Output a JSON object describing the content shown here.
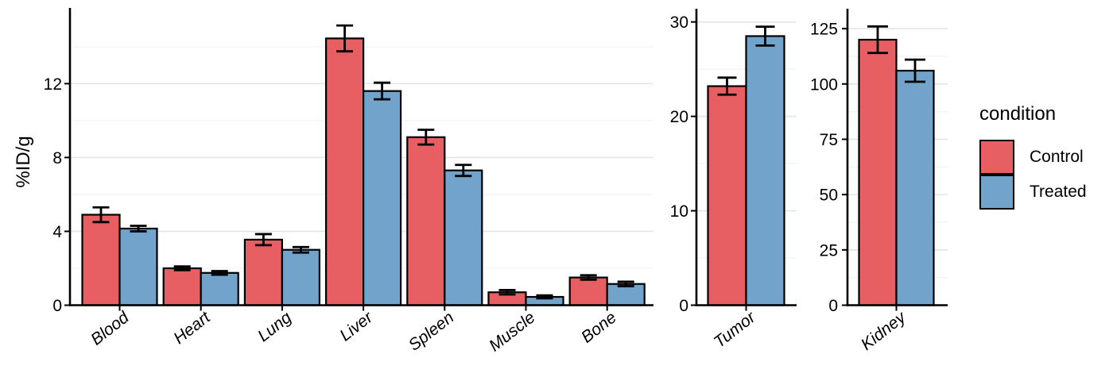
{
  "figure": {
    "background": "#FFFFFF",
    "ylabel": "%ID/g",
    "text_color": "#000000",
    "legend": {
      "title": "condition",
      "position": "right",
      "items": [
        {
          "label": "Control",
          "color": "#E75F63"
        },
        {
          "label": "Treated",
          "color": "#72A3CA"
        }
      ]
    },
    "colors": {
      "bar_border": "#000000",
      "axis": "#000000",
      "error_bar": "#000000",
      "grid_major": "#E4E4E4",
      "grid_minor": "#F3F3F3"
    }
  },
  "chart_data": [
    {
      "type": "bar",
      "panel": "organs",
      "title": "",
      "ylabel": "%ID/g",
      "xlabel": "",
      "categories": [
        "Blood",
        "Heart",
        "Lung",
        "Liver",
        "Spleen",
        "Muscle",
        "Bone"
      ],
      "series": [
        {
          "name": "Control",
          "color": "#E75F63",
          "values": [
            4.9,
            2.0,
            3.55,
            14.45,
            9.1,
            0.7,
            1.5
          ],
          "errors": [
            0.4,
            0.1,
            0.3,
            0.7,
            0.4,
            0.12,
            0.12
          ]
        },
        {
          "name": "Treated",
          "color": "#72A3CA",
          "values": [
            4.15,
            1.75,
            3.0,
            11.6,
            7.3,
            0.45,
            1.15
          ],
          "errors": [
            0.15,
            0.1,
            0.15,
            0.45,
            0.3,
            0.08,
            0.12
          ]
        }
      ],
      "ylim": [
        0,
        16.1
      ],
      "yticks": [
        0,
        4,
        8,
        12
      ],
      "minor_gridlines": [
        2,
        6,
        10,
        14
      ],
      "grid": "horizontal",
      "error_bars": true,
      "x_label_angle_deg": -38,
      "x_label_style": "italic"
    },
    {
      "type": "bar",
      "panel": "tumor",
      "title": "",
      "ylabel": "",
      "xlabel": "",
      "categories": [
        "Tumor"
      ],
      "series": [
        {
          "name": "Control",
          "color": "#E75F63",
          "values": [
            23.2
          ],
          "errors": [
            0.9
          ]
        },
        {
          "name": "Treated",
          "color": "#72A3CA",
          "values": [
            28.5
          ],
          "errors": [
            1.0
          ]
        }
      ],
      "ylim": [
        0,
        31.4
      ],
      "yticks": [
        0,
        10,
        20,
        30
      ],
      "minor_gridlines": [
        5,
        15,
        25
      ],
      "grid": "horizontal",
      "error_bars": true,
      "x_label_angle_deg": -38,
      "x_label_style": "italic"
    },
    {
      "type": "bar",
      "panel": "kidney",
      "title": "",
      "ylabel": "",
      "xlabel": "",
      "categories": [
        "Kidney"
      ],
      "series": [
        {
          "name": "Control",
          "color": "#E75F63",
          "values": [
            120
          ],
          "errors": [
            6
          ]
        },
        {
          "name": "Treated",
          "color": "#72A3CA",
          "values": [
            106
          ],
          "errors": [
            5
          ]
        }
      ],
      "ylim": [
        0,
        134
      ],
      "yticks": [
        0,
        25,
        50,
        75,
        100,
        125
      ],
      "minor_gridlines": [
        12.5,
        37.5,
        62.5,
        87.5,
        112.5
      ],
      "grid": "horizontal",
      "error_bars": true,
      "x_label_angle_deg": -38,
      "x_label_style": "italic"
    }
  ]
}
